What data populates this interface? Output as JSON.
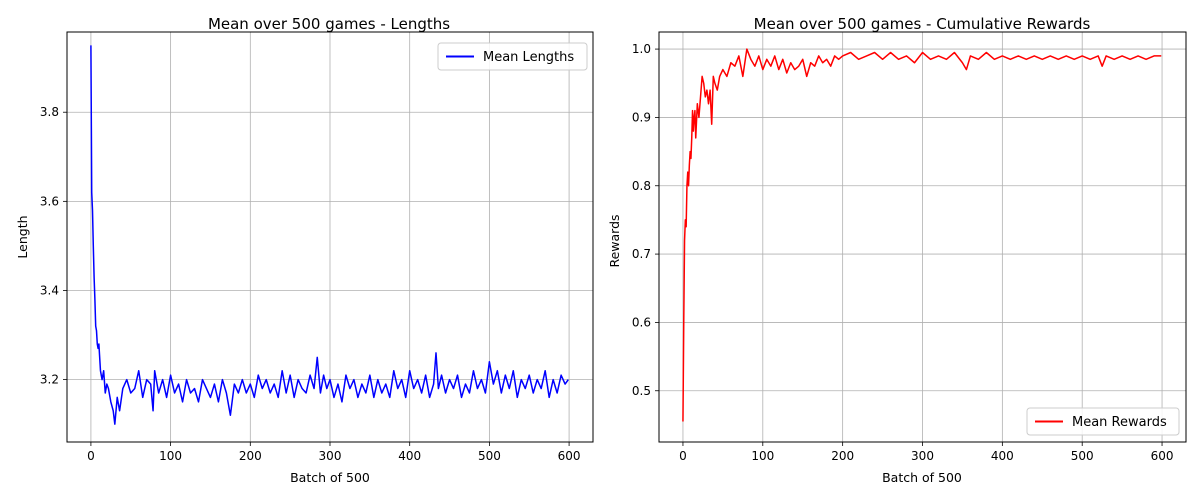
{
  "chart_data": [
    {
      "type": "line",
      "title": "Mean over 500 games - Lengths",
      "xlabel": "Batch of 500",
      "ylabel": "Length",
      "xlim": [
        -30,
        630
      ],
      "ylim": [
        3.06,
        3.98
      ],
      "xticks": [
        0,
        100,
        200,
        300,
        400,
        500,
        600
      ],
      "yticks": [
        3.2,
        3.4,
        3.6,
        3.8
      ],
      "ytick_decimals": 1,
      "grid": true,
      "legend_position": "top-right",
      "series": [
        {
          "name": "Mean Lengths",
          "color": "#0000ff",
          "x": [
            0,
            1,
            2,
            3,
            4,
            5,
            6,
            7,
            8,
            9,
            10,
            12,
            14,
            16,
            18,
            20,
            22,
            25,
            28,
            30,
            33,
            36,
            40,
            45,
            50,
            55,
            60,
            65,
            70,
            75,
            78,
            80,
            85,
            90,
            95,
            100,
            105,
            110,
            115,
            120,
            125,
            130,
            135,
            140,
            145,
            150,
            155,
            160,
            165,
            170,
            175,
            180,
            185,
            190,
            195,
            200,
            205,
            210,
            215,
            220,
            225,
            230,
            235,
            240,
            245,
            250,
            255,
            260,
            265,
            270,
            275,
            280,
            284,
            288,
            292,
            296,
            300,
            305,
            310,
            315,
            320,
            325,
            330,
            335,
            340,
            345,
            350,
            355,
            360,
            365,
            370,
            375,
            380,
            385,
            390,
            395,
            400,
            405,
            410,
            415,
            420,
            425,
            430,
            433,
            436,
            440,
            445,
            450,
            455,
            460,
            465,
            470,
            475,
            480,
            485,
            490,
            495,
            500,
            505,
            510,
            515,
            520,
            525,
            530,
            535,
            540,
            545,
            550,
            555,
            560,
            565,
            570,
            575,
            580,
            585,
            590,
            595,
            599
          ],
          "y": [
            3.95,
            3.62,
            3.58,
            3.5,
            3.43,
            3.38,
            3.32,
            3.31,
            3.28,
            3.27,
            3.28,
            3.22,
            3.2,
            3.22,
            3.17,
            3.19,
            3.18,
            3.15,
            3.13,
            3.1,
            3.16,
            3.13,
            3.18,
            3.2,
            3.17,
            3.18,
            3.22,
            3.16,
            3.2,
            3.19,
            3.13,
            3.22,
            3.17,
            3.2,
            3.16,
            3.21,
            3.17,
            3.19,
            3.15,
            3.2,
            3.17,
            3.18,
            3.15,
            3.2,
            3.18,
            3.16,
            3.19,
            3.15,
            3.2,
            3.17,
            3.12,
            3.19,
            3.17,
            3.2,
            3.17,
            3.19,
            3.16,
            3.21,
            3.18,
            3.2,
            3.17,
            3.19,
            3.16,
            3.22,
            3.17,
            3.21,
            3.16,
            3.2,
            3.18,
            3.17,
            3.21,
            3.18,
            3.25,
            3.17,
            3.21,
            3.18,
            3.2,
            3.16,
            3.19,
            3.15,
            3.21,
            3.18,
            3.2,
            3.16,
            3.19,
            3.17,
            3.21,
            3.16,
            3.2,
            3.17,
            3.19,
            3.16,
            3.22,
            3.18,
            3.2,
            3.16,
            3.22,
            3.18,
            3.2,
            3.17,
            3.21,
            3.16,
            3.19,
            3.26,
            3.18,
            3.21,
            3.17,
            3.2,
            3.18,
            3.21,
            3.16,
            3.19,
            3.17,
            3.22,
            3.18,
            3.2,
            3.17,
            3.24,
            3.19,
            3.22,
            3.17,
            3.21,
            3.18,
            3.22,
            3.16,
            3.2,
            3.18,
            3.21,
            3.17,
            3.2,
            3.18,
            3.22,
            3.16,
            3.2,
            3.17,
            3.21,
            3.19,
            3.2
          ]
        }
      ]
    },
    {
      "type": "line",
      "title": "Mean over 500 games - Cumulative Rewards",
      "xlabel": "Batch of 500",
      "ylabel": "Rewards",
      "xlim": [
        -30,
        630
      ],
      "ylim": [
        0.425,
        1.025
      ],
      "xticks": [
        0,
        100,
        200,
        300,
        400,
        500,
        600
      ],
      "yticks": [
        0.5,
        0.6,
        0.7,
        0.8,
        0.9,
        1.0
      ],
      "ytick_decimals": 1,
      "grid": true,
      "legend_position": "bottom-right",
      "series": [
        {
          "name": "Mean Rewards",
          "color": "#ff0000",
          "x": [
            0,
            1,
            2,
            3,
            4,
            5,
            6,
            7,
            8,
            9,
            10,
            11,
            12,
            13,
            14,
            15,
            16,
            18,
            20,
            22,
            24,
            26,
            28,
            30,
            32,
            34,
            36,
            38,
            40,
            43,
            46,
            50,
            55,
            60,
            65,
            70,
            75,
            80,
            85,
            90,
            95,
            100,
            105,
            110,
            115,
            120,
            125,
            130,
            135,
            140,
            145,
            150,
            155,
            160,
            165,
            170,
            175,
            180,
            185,
            190,
            195,
            200,
            210,
            220,
            230,
            240,
            250,
            260,
            270,
            280,
            290,
            300,
            310,
            320,
            330,
            340,
            350,
            355,
            360,
            370,
            380,
            390,
            400,
            410,
            420,
            430,
            440,
            450,
            460,
            470,
            480,
            490,
            500,
            510,
            520,
            525,
            530,
            540,
            550,
            560,
            570,
            580,
            590,
            599
          ],
          "y": [
            0.455,
            0.6,
            0.72,
            0.75,
            0.74,
            0.8,
            0.82,
            0.8,
            0.83,
            0.85,
            0.84,
            0.87,
            0.91,
            0.88,
            0.9,
            0.91,
            0.87,
            0.92,
            0.9,
            0.93,
            0.96,
            0.95,
            0.93,
            0.94,
            0.92,
            0.94,
            0.89,
            0.96,
            0.95,
            0.94,
            0.96,
            0.97,
            0.96,
            0.98,
            0.975,
            0.99,
            0.96,
            1.0,
            0.985,
            0.975,
            0.99,
            0.97,
            0.985,
            0.975,
            0.99,
            0.97,
            0.985,
            0.965,
            0.98,
            0.97,
            0.975,
            0.985,
            0.96,
            0.98,
            0.975,
            0.99,
            0.98,
            0.985,
            0.975,
            0.99,
            0.985,
            0.99,
            0.995,
            0.985,
            0.99,
            0.995,
            0.985,
            0.995,
            0.985,
            0.99,
            0.98,
            0.995,
            0.985,
            0.99,
            0.985,
            0.995,
            0.98,
            0.97,
            0.99,
            0.985,
            0.995,
            0.985,
            0.99,
            0.985,
            0.99,
            0.985,
            0.99,
            0.985,
            0.99,
            0.985,
            0.99,
            0.985,
            0.99,
            0.985,
            0.99,
            0.975,
            0.99,
            0.985,
            0.99,
            0.985,
            0.99,
            0.985,
            0.99,
            0.99
          ]
        }
      ]
    }
  ]
}
